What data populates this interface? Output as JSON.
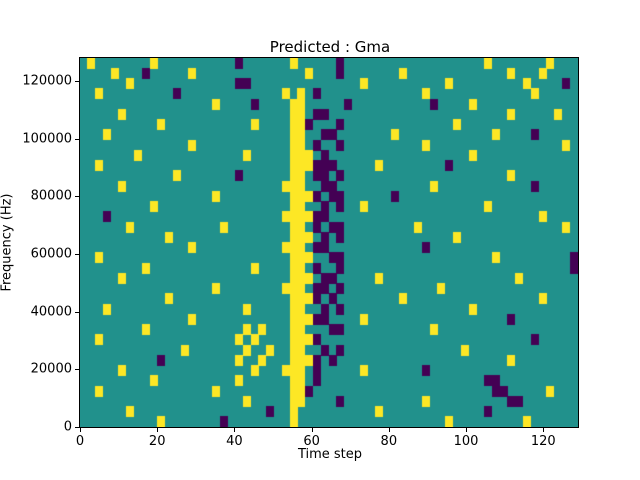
{
  "figure": {
    "title": "Predicted : Gma",
    "xlabel": "Time step",
    "ylabel": "Frequency (Hz)"
  },
  "chart_data": {
    "type": "heatmap",
    "title": "Predicted : Gma",
    "xlabel": "Time step",
    "ylabel": "Frequency (Hz)",
    "xlim": [
      0,
      129
    ],
    "ylim": [
      0,
      128000
    ],
    "x_ticks": [
      0,
      20,
      40,
      60,
      80,
      100,
      120
    ],
    "y_ticks": [
      0,
      20000,
      40000,
      60000,
      80000,
      100000,
      120000
    ],
    "legend": "none",
    "grid_lines": "off",
    "colors": {
      "mid": "#21918c",
      "high": "#fde725",
      "low": "#440154"
    },
    "description": "Ternary-valued spectrogram-like heatmap: teal background with scattered yellow (high) and dark purple (low) cells; strong vertical yellow band near time steps 53-58 spanning low-to-mid frequencies, adjacent purple band near time steps 60-67, yellow cluster near time 40-50 at low frequencies, purple cluster near time 104-112 at low frequencies, purple cell at right edge near 60000 Hz",
    "grid": {
      "cols": 64,
      "rows": 36,
      "encoding": {
        ".": "mid",
        "y": "high",
        "p": "low"
      },
      "order": "top_to_bottom",
      "rows_chunks": [
        [
          ".y......",
          ".y......",
          "....p...",
          "...y....",
          ".p......",
          "........",
          "....y...",
          "....y..."
        ],
        [
          "....y...",
          "p.....y.",
          "........",
          ".....y..",
          ".p......",
          ".y......",
          ".......y",
          "...y...."
        ],
        [
          "......y.",
          "........",
          "....pp..",
          "........",
          "....y...",
          ".......y",
          "........",
          ".y....p."
        ],
        [
          "..y.....",
          "....p...",
          "........",
          "..y.y.p.",
          "........",
          "....y...",
          "........",
          "..y....."
        ],
        [
          "........",
          "........",
          ".y....p.",
          "...yy...",
          "..p.....",
          ".....p..",
          "..y.....",
          "........"
        ],
        [
          ".....y..",
          "........",
          "........",
          "...yy.pp",
          "........",
          "........",
          ".......y",
          ".....y.."
        ],
        [
          "........",
          "..y.....",
          "......y.",
          "...yyp..",
          ".p......",
          "........",
          "y.......",
          "........"
        ],
        [
          "...y....",
          "........",
          "........",
          "...yy..p",
          "p.......",
          "y.......",
          ".....y..",
          "..p....."
        ],
        [
          "........",
          "......y.",
          "........",
          "...yy.p.",
          ".p......",
          "....y...",
          "........",
          "......y."
        ],
        [
          ".......y",
          "........",
          ".....y..",
          "...yyy.p",
          "........",
          "........",
          "..y.....",
          "........"
        ],
        [
          "..y.....",
          "........",
          "........",
          "...yyypp",
          "p.....y.",
          ".......p",
          "........",
          "........"
        ],
        [
          "........",
          "....y...",
          "....p...",
          "...yy.pp",
          ".p......",
          "........",
          ".......y",
          "........"
        ],
        [
          ".....y..",
          "........",
          "........",
          "..yyy..p",
          "p.......",
          ".....y..",
          "........",
          "..p....."
        ],
        [
          "........",
          "........",
          ".y......",
          "...yyyp.",
          "pp......",
          "p.......",
          "........",
          "........"
        ],
        [
          "........",
          ".y......",
          "........",
          "...yy..p",
          ".p..y...",
          "........",
          "....y...",
          "........"
        ],
        [
          "...p....",
          "........",
          "........",
          "..yyyypp",
          "........",
          "........",
          "........",
          "...y...."
        ],
        [
          "......y.",
          "........",
          "..y.....",
          "...yy.p.",
          "pp......",
          "...y....",
          "........",
          "......y."
        ],
        [
          "........",
          "...y....",
          "........",
          "...yyy.p",
          ".p......",
          "........",
          "y.......",
          "........"
        ],
        [
          "........",
          "......y.",
          "........",
          "..yyy.pp",
          "........",
          "....p...",
          "........",
          "........"
        ],
        [
          "..y.....",
          "........",
          "........",
          "...yyy..",
          "pp......",
          "........",
          ".....y..",
          ".......p"
        ],
        [
          "........",
          "y.......",
          "......y.",
          "...yy.p.",
          ".p......",
          "........",
          "........",
          ".......p"
        ],
        [
          ".....y..",
          "........",
          "........",
          "...yyy.p",
          "p.....y.",
          "........",
          "........",
          "y......."
        ],
        [
          "........",
          "........",
          ".y......",
          "..yyy.pp",
          ".p......",
          "......y.",
          "........",
          "........"
        ],
        [
          "........",
          "...y....",
          "........",
          "...yyyp.",
          "p.......",
          ".y......",
          "........",
          "...y...."
        ],
        [
          "...y....",
          "........",
          ".....y..",
          "...yy..p",
          ".p......",
          "........",
          "..y.....",
          "........"
        ],
        [
          "........",
          "......y.",
          "........",
          "...yyypp",
          "....y...",
          "........",
          ".......p",
          "........"
        ],
        [
          "........",
          "y.......",
          ".....y.y",
          "...yy...",
          "pp......",
          ".....y..",
          "........",
          "........"
        ],
        [
          "..y.....",
          "........",
          "....y.y.",
          "...yyyp.",
          "........",
          "........",
          "........",
          "..p....."
        ],
        [
          "........",
          ".....y..",
          ".....y..",
          "y..yy..p",
          ".p......",
          "........",
          ".y......",
          "........"
        ],
        [
          "........",
          "..p.....",
          "....y..y",
          "...yyyp.",
          "p.......",
          "........",
          ".......y",
          "........"
        ],
        [
          ".....y..",
          "........",
          "......y.",
          "..yyy.p.",
          "....y...",
          "....p...",
          "........",
          "........"
        ],
        [
          "........",
          ".y......",
          "....y...",
          "...yy.p.",
          "........",
          "........",
          "....pp..",
          "........"
        ],
        [
          "..y.....",
          "........",
          ".y......",
          "...yyp..",
          "........",
          "........",
          ".....pp.",
          "....y..."
        ],
        [
          "........",
          "........",
          ".....y..",
          "...yy...",
          ".p......",
          "....y...",
          ".......p",
          "p......."
        ],
        [
          "......y.",
          "........",
          "........",
          "p..y....",
          "......y.",
          "........",
          "....p...",
          "........"
        ],
        [
          "........",
          "..y.....",
          "..p.....",
          "...y....",
          "........",
          ".......y",
          "........",
          ".y......"
        ]
      ]
    }
  }
}
